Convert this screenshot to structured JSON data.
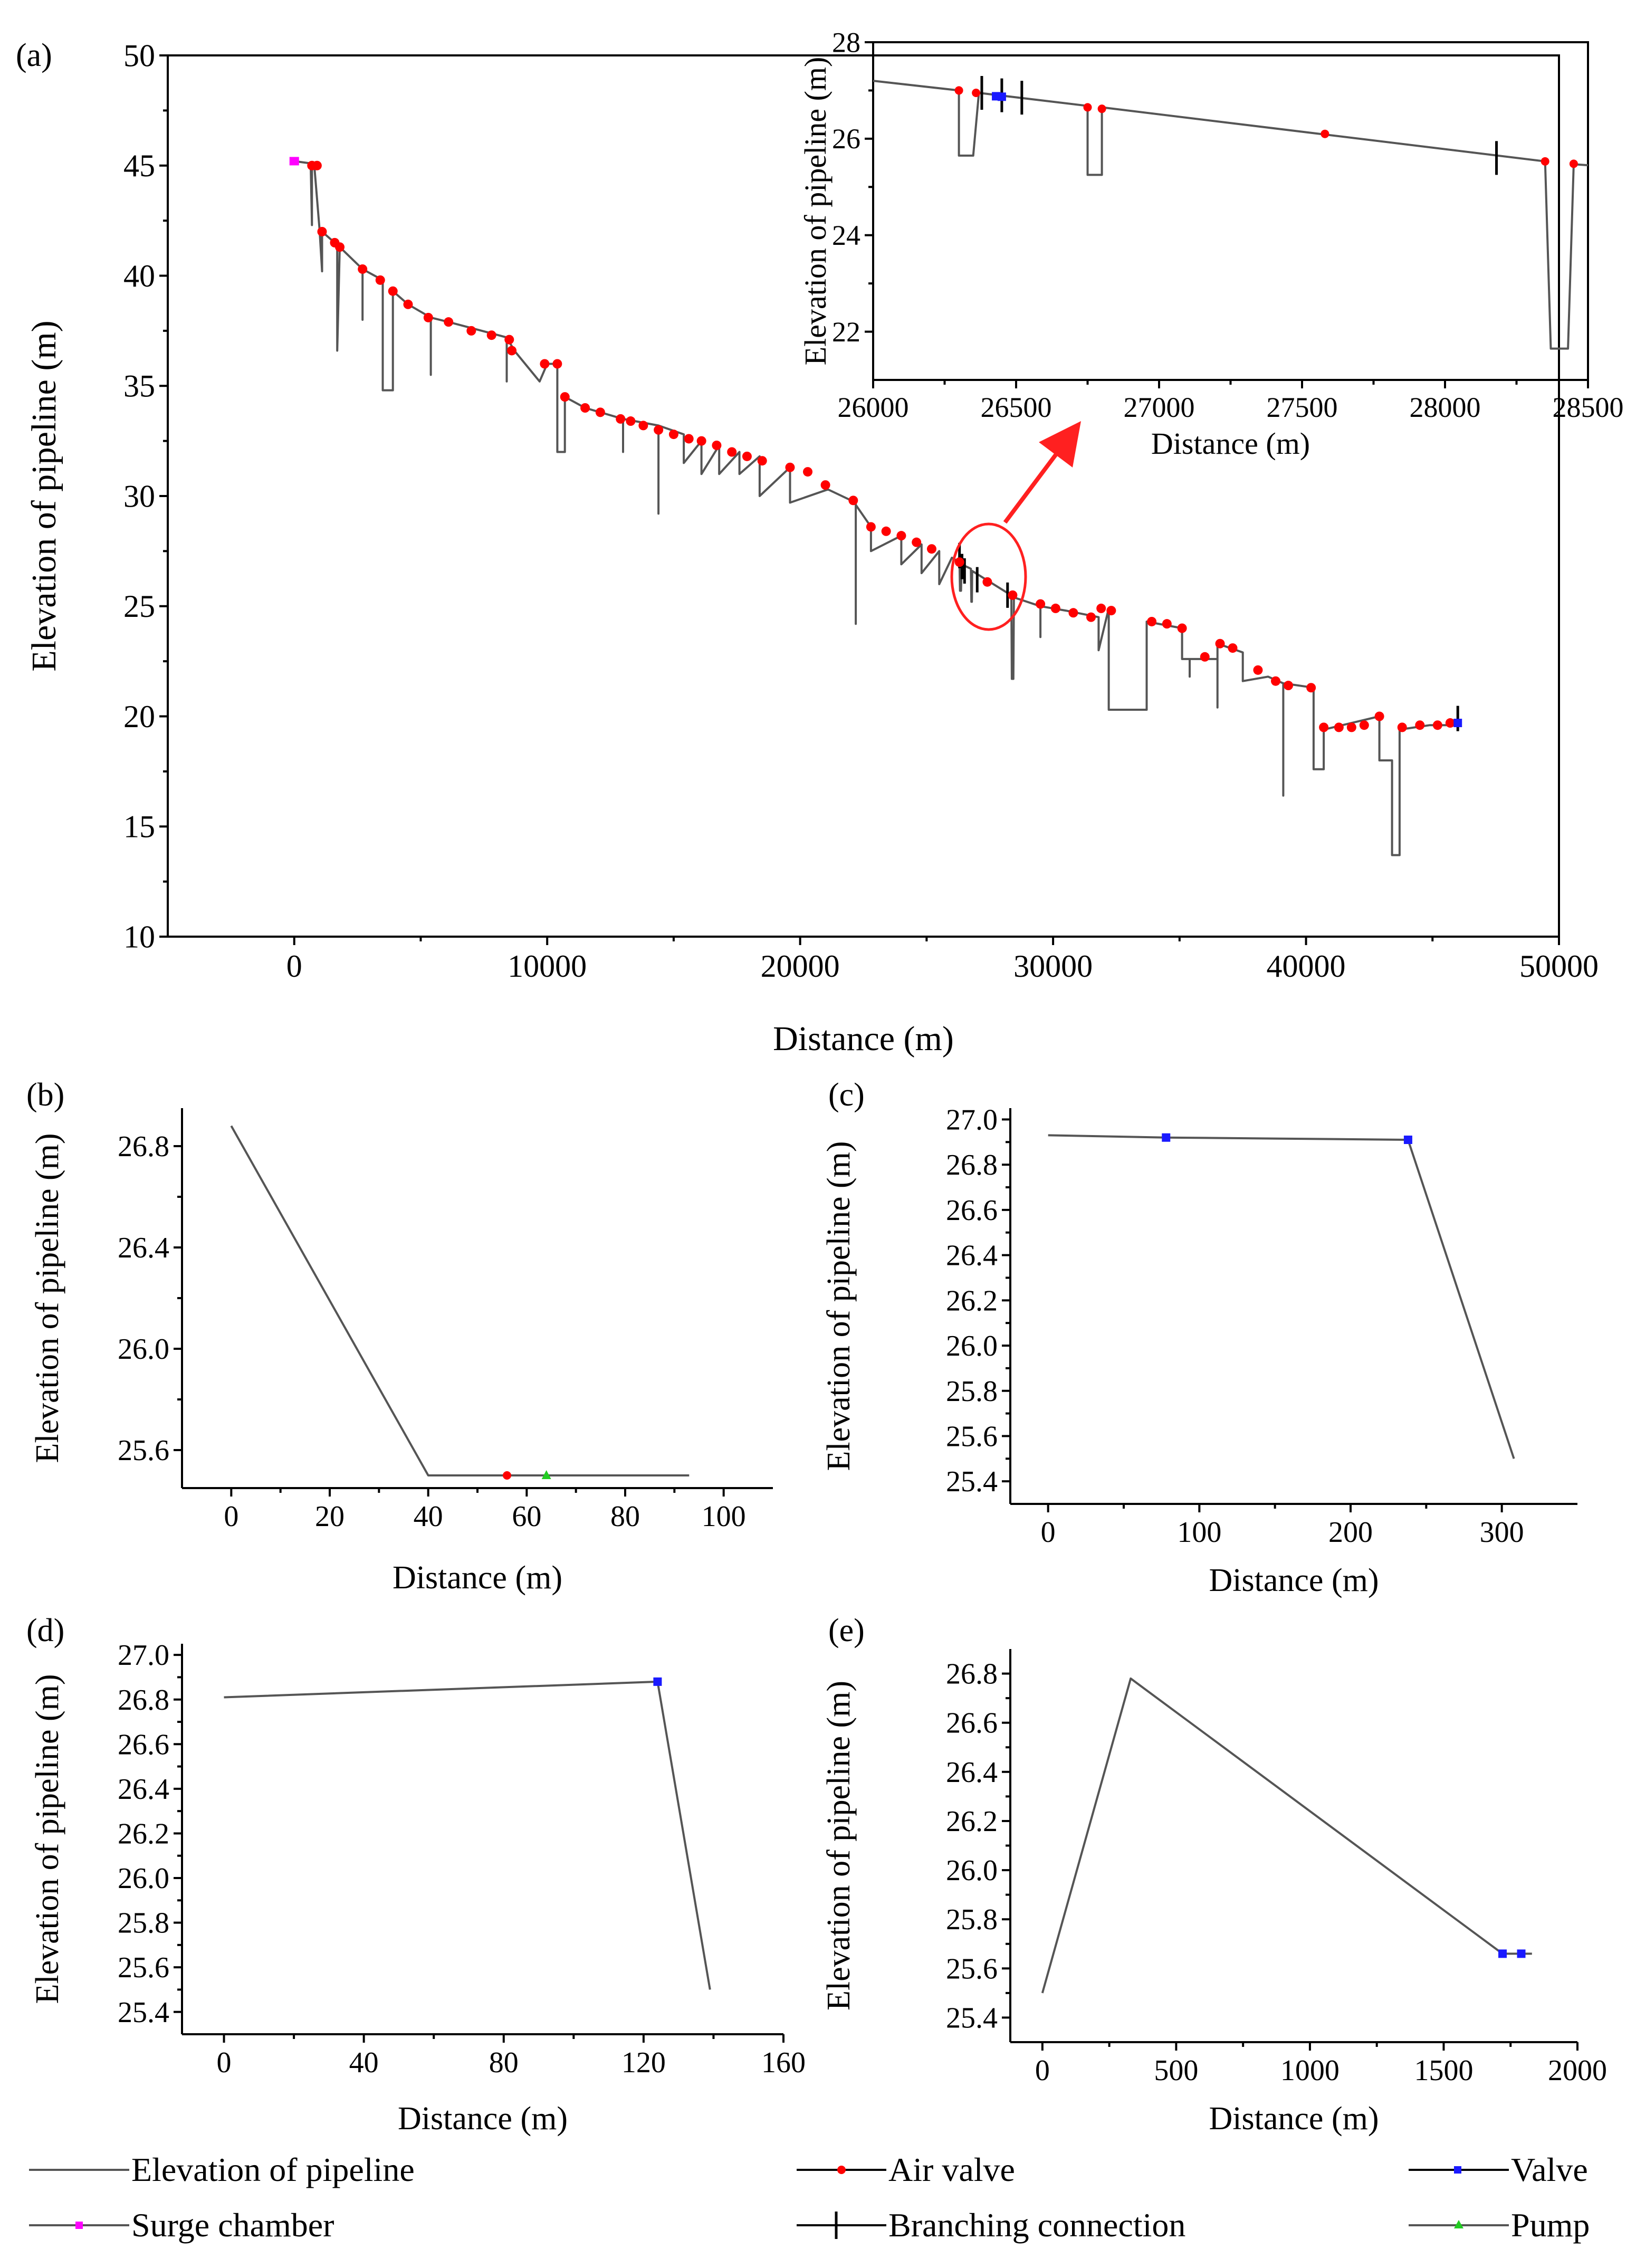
{
  "colors": {
    "line": "#555555",
    "air_valve": "#ff0000",
    "valve": "#1a1aff",
    "surge": "#ff00ff",
    "pump": "#22cc22",
    "branch": "#000000",
    "annot": "#ff2020"
  },
  "legend": {
    "elevation": "Elevation of pipeline",
    "air_valve": "Air valve",
    "valve": "Valve",
    "surge": "Surge chamber",
    "branch": "Branching connection",
    "pump": "Pump"
  },
  "chart_data": [
    {
      "id": "a",
      "panel_label": "(a)",
      "type": "line",
      "xlabel": "Distance (m)",
      "ylabel": "Elevation of pipeline (m)",
      "xlim": [
        -5000,
        50000
      ],
      "ylim": [
        10,
        50
      ],
      "xticks": [
        0,
        10000,
        20000,
        30000,
        40000,
        50000
      ],
      "yticks": [
        10,
        15,
        20,
        25,
        30,
        35,
        40,
        45,
        50
      ],
      "series": {
        "elevation": [
          [
            0,
            45.2
          ],
          [
            650,
            45.1
          ],
          [
            700,
            42.3
          ],
          [
            700,
            45
          ],
          [
            800,
            44.9
          ],
          [
            1000,
            42.1
          ],
          [
            1100,
            40.2
          ],
          [
            1100,
            42
          ],
          [
            1500,
            41.6
          ],
          [
            1700,
            41.4
          ],
          [
            1700,
            36.6
          ],
          [
            1800,
            41.3
          ],
          [
            2700,
            40.3
          ],
          [
            2700,
            38.0
          ],
          [
            2700,
            40.3
          ],
          [
            3500,
            39.8
          ],
          [
            3500,
            34.8
          ],
          [
            3900,
            34.8
          ],
          [
            3900,
            39.3
          ],
          [
            4500,
            38.7
          ],
          [
            5400,
            38.1
          ],
          [
            5400,
            35.5
          ],
          [
            5400,
            38.1
          ],
          [
            6100,
            37.9
          ],
          [
            8400,
            37.2
          ],
          [
            8400,
            35.2
          ],
          [
            8400,
            37.2
          ],
          [
            8700,
            36.6
          ],
          [
            9700,
            35.2
          ],
          [
            10000,
            36
          ],
          [
            10400,
            36
          ],
          [
            10400,
            32.0
          ],
          [
            10700,
            32.0
          ],
          [
            10700,
            34.5
          ],
          [
            11500,
            34
          ],
          [
            13000,
            33.5
          ],
          [
            13000,
            32
          ],
          [
            13000,
            33.5
          ],
          [
            14400,
            33.2
          ],
          [
            14400,
            29.2
          ],
          [
            14400,
            33.2
          ],
          [
            15400,
            32.8
          ],
          [
            15400,
            31.5
          ],
          [
            16100,
            32.5
          ],
          [
            16100,
            31
          ],
          [
            16800,
            32.3
          ],
          [
            16800,
            31
          ],
          [
            17600,
            32
          ],
          [
            17600,
            31
          ],
          [
            18400,
            31.8
          ],
          [
            18400,
            30
          ],
          [
            19600,
            31.3
          ],
          [
            19600,
            29.7
          ],
          [
            21100,
            30.3
          ],
          [
            22200,
            29.7
          ],
          [
            22200,
            24.2
          ],
          [
            22200,
            29.6
          ],
          [
            22800,
            28.6
          ],
          [
            22800,
            27.5
          ],
          [
            24000,
            28.2
          ],
          [
            24000,
            26.9
          ],
          [
            24800,
            27.8
          ],
          [
            24800,
            26.5
          ],
          [
            25500,
            27.5
          ],
          [
            25500,
            26
          ],
          [
            26000,
            27.2
          ],
          [
            26300,
            27
          ],
          [
            26320,
            25.7
          ],
          [
            26360,
            25.7
          ],
          [
            26380,
            26.9
          ],
          [
            26750,
            26.7
          ],
          [
            26770,
            25.2
          ],
          [
            26790,
            25.2
          ],
          [
            26800,
            26.6
          ],
          [
            28200,
            25.6
          ],
          [
            28350,
            25.5
          ],
          [
            28370,
            21.7
          ],
          [
            28430,
            21.7
          ],
          [
            28450,
            25.4
          ],
          [
            29500,
            25
          ],
          [
            29500,
            23.6
          ],
          [
            29500,
            25
          ],
          [
            30500,
            24.8
          ],
          [
            31800,
            24.5
          ],
          [
            31800,
            23
          ],
          [
            32200,
            24.9
          ],
          [
            32200,
            20.3
          ],
          [
            33700,
            20.3
          ],
          [
            33700,
            24.3
          ],
          [
            35100,
            24
          ],
          [
            35100,
            22.6
          ],
          [
            35400,
            22.6
          ],
          [
            35400,
            21.8
          ],
          [
            35400,
            22.6
          ],
          [
            36500,
            22.6
          ],
          [
            36500,
            20.4
          ],
          [
            36500,
            23.3
          ],
          [
            37500,
            22.9
          ],
          [
            37500,
            21.6
          ],
          [
            38500,
            21.8
          ],
          [
            39100,
            21.5
          ],
          [
            39100,
            16.4
          ],
          [
            39100,
            21.5
          ],
          [
            40300,
            21.3
          ],
          [
            40300,
            17.6
          ],
          [
            40700,
            17.6
          ],
          [
            40700,
            19.4
          ],
          [
            42900,
            20
          ],
          [
            42900,
            18
          ],
          [
            43400,
            18
          ],
          [
            43400,
            13.7
          ],
          [
            43700,
            13.7
          ],
          [
            43700,
            19.4
          ],
          [
            44900,
            19.6
          ],
          [
            46000,
            19.6
          ]
        ],
        "air_valve": [
          [
            700,
            45
          ],
          [
            900,
            45
          ],
          [
            1100,
            42
          ],
          [
            1600,
            41.5
          ],
          [
            1800,
            41.3
          ],
          [
            2700,
            40.3
          ],
          [
            3400,
            39.8
          ],
          [
            3900,
            39.3
          ],
          [
            4500,
            38.7
          ],
          [
            5300,
            38.1
          ],
          [
            6100,
            37.9
          ],
          [
            7000,
            37.5
          ],
          [
            7800,
            37.3
          ],
          [
            8500,
            37.1
          ],
          [
            8600,
            36.6
          ],
          [
            9900,
            36
          ],
          [
            10400,
            36
          ],
          [
            10700,
            34.5
          ],
          [
            11500,
            34
          ],
          [
            12100,
            33.8
          ],
          [
            12900,
            33.5
          ],
          [
            13300,
            33.4
          ],
          [
            13800,
            33.2
          ],
          [
            14400,
            33
          ],
          [
            15000,
            32.8
          ],
          [
            15600,
            32.6
          ],
          [
            16100,
            32.5
          ],
          [
            16700,
            32.3
          ],
          [
            17300,
            32
          ],
          [
            17900,
            31.8
          ],
          [
            18500,
            31.6
          ],
          [
            19600,
            31.3
          ],
          [
            20300,
            31.1
          ],
          [
            21000,
            30.5
          ],
          [
            22100,
            29.8
          ],
          [
            22800,
            28.6
          ],
          [
            23400,
            28.4
          ],
          [
            24000,
            28.2
          ],
          [
            24600,
            27.9
          ],
          [
            25200,
            27.6
          ],
          [
            26300,
            27
          ],
          [
            27400,
            26.1
          ],
          [
            28400,
            25.5
          ],
          [
            29500,
            25.1
          ],
          [
            30100,
            24.9
          ],
          [
            30800,
            24.7
          ],
          [
            31500,
            24.5
          ],
          [
            31900,
            24.9
          ],
          [
            32300,
            24.8
          ],
          [
            33900,
            24.3
          ],
          [
            34500,
            24.2
          ],
          [
            35100,
            24
          ],
          [
            36000,
            22.7
          ],
          [
            36600,
            23.3
          ],
          [
            37100,
            23.1
          ],
          [
            38100,
            22.1
          ],
          [
            38800,
            21.6
          ],
          [
            39300,
            21.4
          ],
          [
            40200,
            21.3
          ],
          [
            40700,
            19.5
          ],
          [
            41300,
            19.5
          ],
          [
            41800,
            19.5
          ],
          [
            42300,
            19.6
          ],
          [
            42900,
            20
          ],
          [
            43800,
            19.5
          ],
          [
            44500,
            19.6
          ],
          [
            45200,
            19.6
          ],
          [
            45700,
            19.7
          ]
        ],
        "surge": [
          [
            0,
            45.2
          ]
        ],
        "valve": [
          [
            46000,
            19.7
          ]
        ],
        "branch": [
          [
            26300,
            27.3
          ],
          [
            26400,
            26.8
          ],
          [
            26500,
            26.6
          ],
          [
            27000,
            26.2
          ],
          [
            28200,
            25.5
          ],
          [
            46000,
            19.9
          ]
        ]
      }
    },
    {
      "id": "a_inset",
      "type": "line",
      "xlabel": "Distance (m)",
      "ylabel": "Elevation of pipeline (m)",
      "xlim": [
        26000,
        28500
      ],
      "ylim": [
        21,
        28
      ],
      "xticks": [
        26000,
        26500,
        27000,
        27500,
        28000,
        28500
      ],
      "yticks": [
        22,
        24,
        26,
        28
      ],
      "series": {
        "elevation": [
          [
            26000,
            27.2
          ],
          [
            26300,
            27
          ],
          [
            26300,
            25.65
          ],
          [
            26350,
            25.65
          ],
          [
            26370,
            26.95
          ],
          [
            26750,
            26.68
          ],
          [
            26750,
            25.25
          ],
          [
            26800,
            25.25
          ],
          [
            26800,
            26.65
          ],
          [
            28350,
            25.53
          ],
          [
            28370,
            21.65
          ],
          [
            28430,
            21.65
          ],
          [
            28450,
            25.47
          ],
          [
            28500,
            25.45
          ]
        ],
        "air_valve": [
          [
            26300,
            27
          ],
          [
            26360,
            26.95
          ],
          [
            26750,
            26.65
          ],
          [
            26800,
            26.62
          ],
          [
            27580,
            26.1
          ],
          [
            28350,
            25.53
          ],
          [
            28450,
            25.48
          ]
        ],
        "valve": [
          [
            26430,
            26.88
          ],
          [
            26450,
            26.87
          ]
        ],
        "branch": [
          [
            26380,
            26.95
          ],
          [
            26450,
            26.9
          ],
          [
            26520,
            26.85
          ],
          [
            28180,
            25.6
          ]
        ]
      }
    },
    {
      "id": "b",
      "panel_label": "(b)",
      "type": "line",
      "xlabel": "Distance (m)",
      "ylabel": "Elevation of pipeline (m)",
      "xlim": [
        -10,
        110
      ],
      "ylim": [
        25.45,
        26.95
      ],
      "xticks": [
        0,
        20,
        40,
        60,
        80,
        100
      ],
      "yticks": [
        25.6,
        26.0,
        26.4,
        26.8
      ],
      "ytick_labels": [
        "25.6",
        "26.0",
        "26.4",
        "26.8"
      ],
      "series": {
        "elevation": [
          [
            0,
            26.88
          ],
          [
            40,
            25.5
          ],
          [
            93,
            25.5
          ]
        ],
        "air_valve": [
          [
            56,
            25.5
          ]
        ],
        "pump": [
          [
            64,
            25.5
          ]
        ]
      }
    },
    {
      "id": "c",
      "panel_label": "(c)",
      "type": "line",
      "xlabel": "Distance (m)",
      "ylabel": "Elevation of pipeline (m)",
      "xlim": [
        -25,
        350
      ],
      "ylim": [
        25.3,
        27.05
      ],
      "xticks": [
        0,
        100,
        200,
        300
      ],
      "yticks": [
        25.4,
        25.6,
        25.8,
        26.0,
        26.2,
        26.4,
        26.6,
        26.8,
        27.0
      ],
      "ytick_labels": [
        "25.4",
        "25.6",
        "25.8",
        "26.0",
        "26.2",
        "26.4",
        "26.6",
        "26.8",
        "27.0"
      ],
      "series": {
        "elevation": [
          [
            0,
            26.93
          ],
          [
            78,
            26.92
          ],
          [
            238,
            26.91
          ],
          [
            308,
            25.5
          ]
        ],
        "valve": [
          [
            78,
            26.92
          ],
          [
            238,
            26.91
          ]
        ]
      }
    },
    {
      "id": "d",
      "panel_label": "(d)",
      "type": "line",
      "xlabel": "Distance (m)",
      "ylabel": "Elevation of pipeline (m)",
      "xlim": [
        -12,
        160
      ],
      "ylim": [
        25.3,
        27.05
      ],
      "xticks": [
        0,
        40,
        80,
        120,
        160
      ],
      "yticks": [
        25.4,
        25.6,
        25.8,
        26.0,
        26.2,
        26.4,
        26.6,
        26.8,
        27.0
      ],
      "ytick_labels": [
        "25.4",
        "25.6",
        "25.8",
        "26.0",
        "26.2",
        "26.4",
        "26.6",
        "26.8",
        "27.0"
      ],
      "series": {
        "elevation": [
          [
            0,
            26.81
          ],
          [
            124,
            26.88
          ],
          [
            139,
            25.5
          ]
        ],
        "valve": [
          [
            124,
            26.88
          ]
        ]
      }
    },
    {
      "id": "e",
      "panel_label": "(e)",
      "type": "line",
      "xlabel": "Distance (m)",
      "ylabel": "Elevation of pipeline (m)",
      "xlim": [
        -120,
        2000
      ],
      "ylim": [
        25.3,
        26.9
      ],
      "xticks": [
        0,
        500,
        1000,
        1500,
        2000
      ],
      "yticks": [
        25.4,
        25.6,
        25.8,
        26.0,
        26.2,
        26.4,
        26.6,
        26.8
      ],
      "ytick_labels": [
        "25.4",
        "25.6",
        "25.8",
        "26.0",
        "26.2",
        "26.4",
        "26.6",
        "26.8"
      ],
      "series": {
        "elevation": [
          [
            0,
            25.5
          ],
          [
            330,
            26.78
          ],
          [
            1720,
            25.66
          ],
          [
            1830,
            25.66
          ]
        ],
        "valve": [
          [
            1720,
            25.66
          ],
          [
            1790,
            25.66
          ]
        ]
      }
    }
  ]
}
